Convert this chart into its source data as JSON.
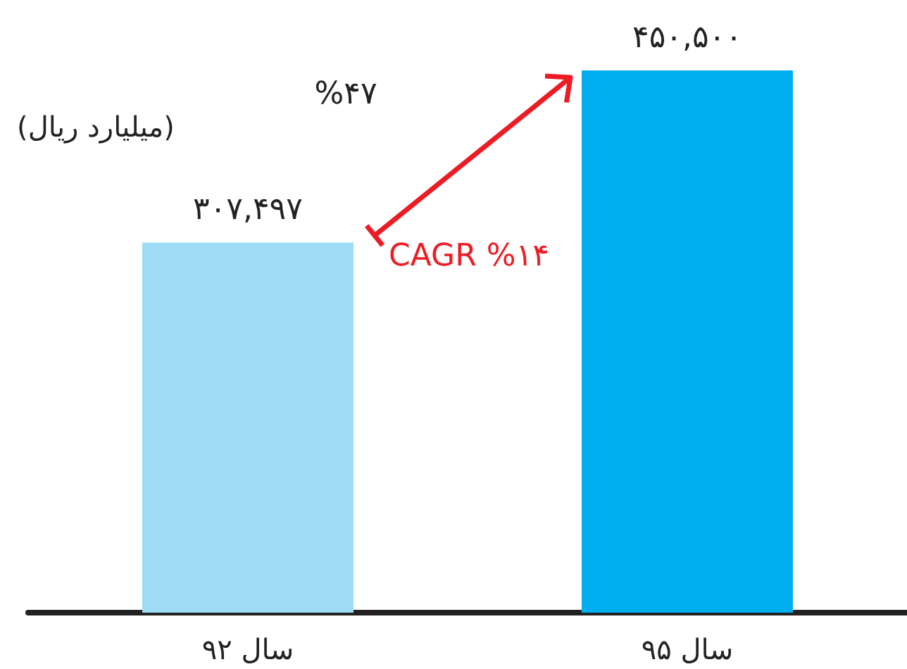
{
  "chart_data": {
    "type": "bar",
    "ylabel": "(میلیارد ریال)",
    "categories": [
      "سال ۹۲",
      "سال ۹۵"
    ],
    "values": [
      307497,
      450500
    ],
    "colors": [
      "#9edcf5",
      "#00adee"
    ],
    "value_labels": [
      "۳۰۷,۴۹۷",
      "۴۵۰,۵۰۰"
    ],
    "annotations": [
      "%۴۷",
      "CAGR %۱۴"
    ]
  }
}
